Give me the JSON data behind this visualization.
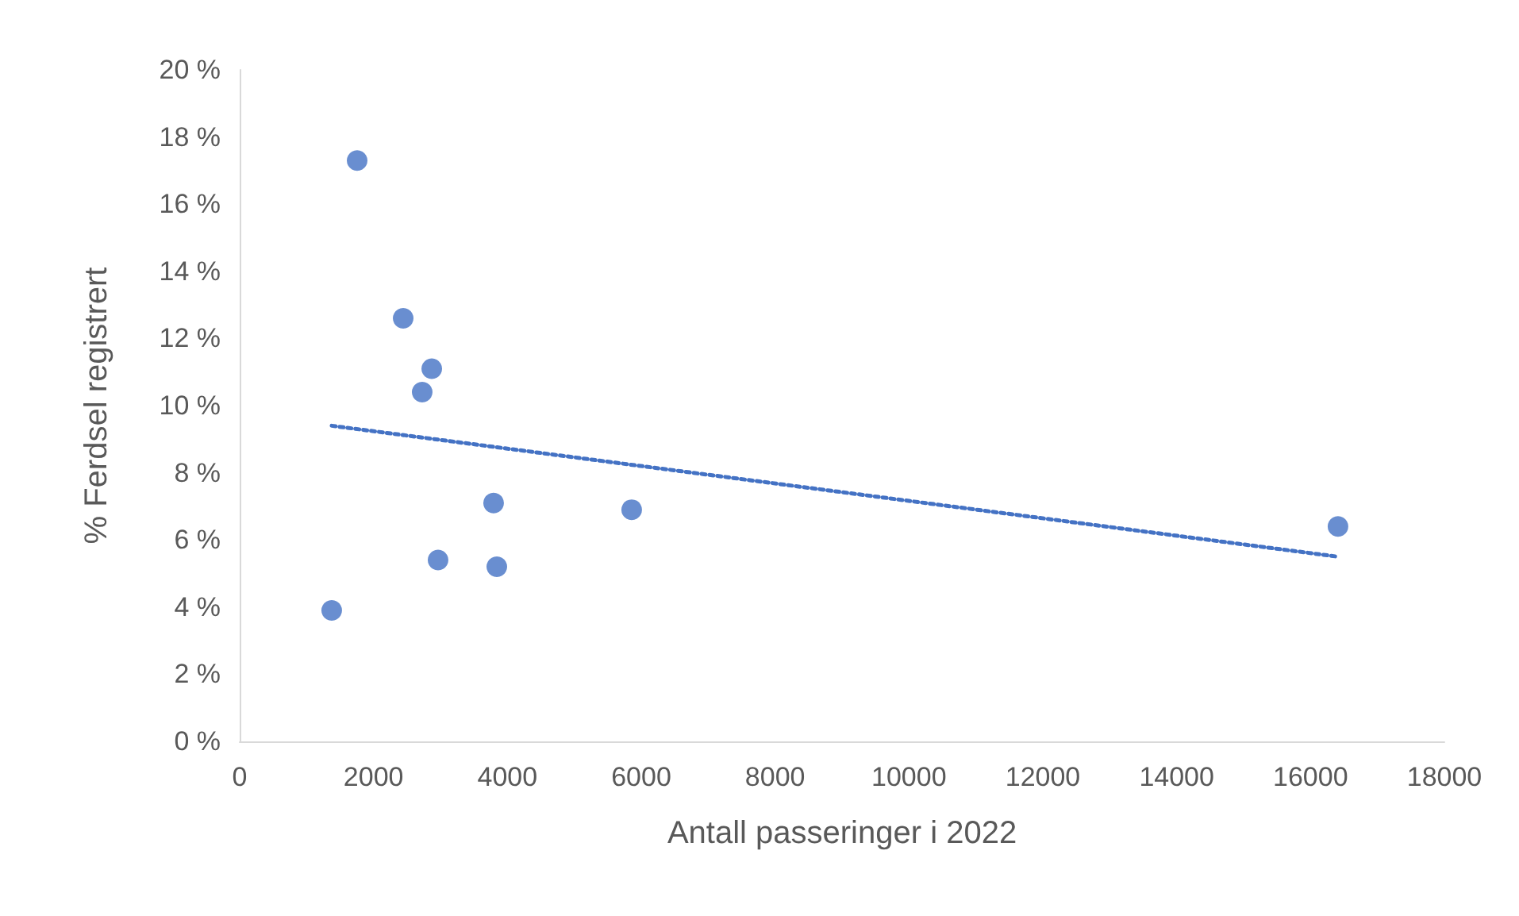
{
  "chart_data": {
    "type": "scatter",
    "xlabel": "Antall passeringer i 2022",
    "ylabel": "% Ferdsel registrert",
    "x": [
      1375,
      1755,
      2443,
      2870,
      2727,
      3794,
      2964,
      3842,
      5857,
      16410
    ],
    "series": [
      {
        "color": "#4472c4",
        "values": [
          3.9,
          17.3,
          12.6,
          11.1,
          10.4,
          7.1,
          5.4,
          5.2,
          6.9,
          6.4
        ]
      },
      {
        "type": "line",
        "color": "#4472c4",
        "line_style": "dotted",
        "marker": "none",
        "x": [
          1375,
          16410
        ],
        "values": [
          9.4,
          5.5
        ]
      }
    ],
    "marker": "circle",
    "xlim": [
      0,
      18000
    ],
    "xticks": [
      0,
      2000,
      4000,
      6000,
      8000,
      10000,
      12000,
      14000,
      16000,
      18000
    ],
    "ylim": [
      0,
      20
    ],
    "yticks": [
      {
        "value": 0,
        "label": "0 %"
      },
      {
        "value": 2,
        "label": "2 %"
      },
      {
        "value": 4,
        "label": "4 %"
      },
      {
        "value": 6,
        "label": "6 %"
      },
      {
        "value": 8,
        "label": "8 %"
      },
      {
        "value": 10,
        "label": "10 %"
      },
      {
        "value": 12,
        "label": "12 %"
      },
      {
        "value": 14,
        "label": "14 %"
      },
      {
        "value": 16,
        "label": "16 %"
      },
      {
        "value": 18,
        "label": "18 %"
      },
      {
        "value": 20,
        "label": "20 %"
      }
    ],
    "grid": false
  }
}
